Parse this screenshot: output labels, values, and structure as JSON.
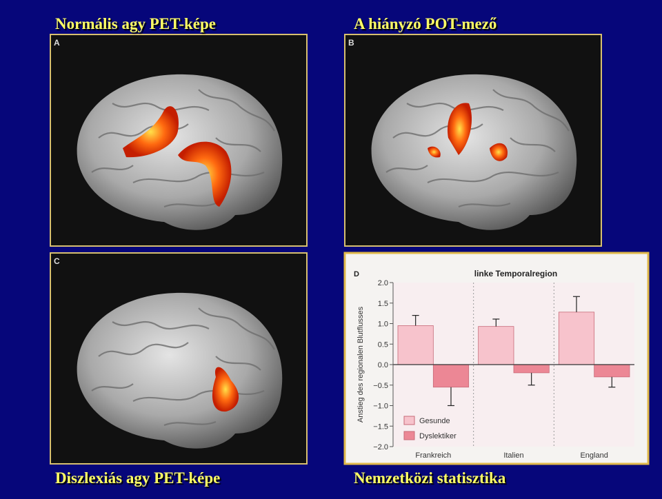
{
  "slide": {
    "titles": [
      "Normális agy PET-képe",
      "A hiányzó POT-mező",
      "Diszlexiás agy PET-képe",
      "Nemzetközi statisztika"
    ],
    "panel_labels": [
      "A",
      "B",
      "C"
    ]
  },
  "chart_data": {
    "type": "bar",
    "panel_label": "D",
    "title": "linke Temporalregion",
    "y_label": "Anstieg des regionalen Blutflusses",
    "categories": [
      "Frankreich",
      "Italien",
      "England"
    ],
    "series": [
      {
        "name": "Gesunde",
        "color": "#f7c3cc",
        "values": [
          0.95,
          0.93,
          1.28
        ],
        "errors": [
          0.25,
          0.18,
          0.38
        ]
      },
      {
        "name": "Dyslektiker",
        "color": "#ec8795",
        "values": [
          -0.55,
          -0.2,
          -0.3
        ],
        "errors": [
          0.45,
          0.3,
          0.25
        ]
      }
    ],
    "ylim": [
      -2,
      2
    ],
    "yticks": [
      {
        "value": 2,
        "label": "2.0"
      },
      1.5,
      {
        "value": 1,
        "label": "1.0"
      },
      0.5,
      {
        "value": 0,
        "label": "0.0"
      },
      {
        "value": -0.5,
        "label": "−0.5"
      },
      {
        "value": -1,
        "label": "−1.0"
      },
      {
        "value": -1.5,
        "label": "−1.5"
      },
      {
        "value": -2,
        "label": "−2.0"
      }
    ],
    "legend": "lower-left"
  }
}
